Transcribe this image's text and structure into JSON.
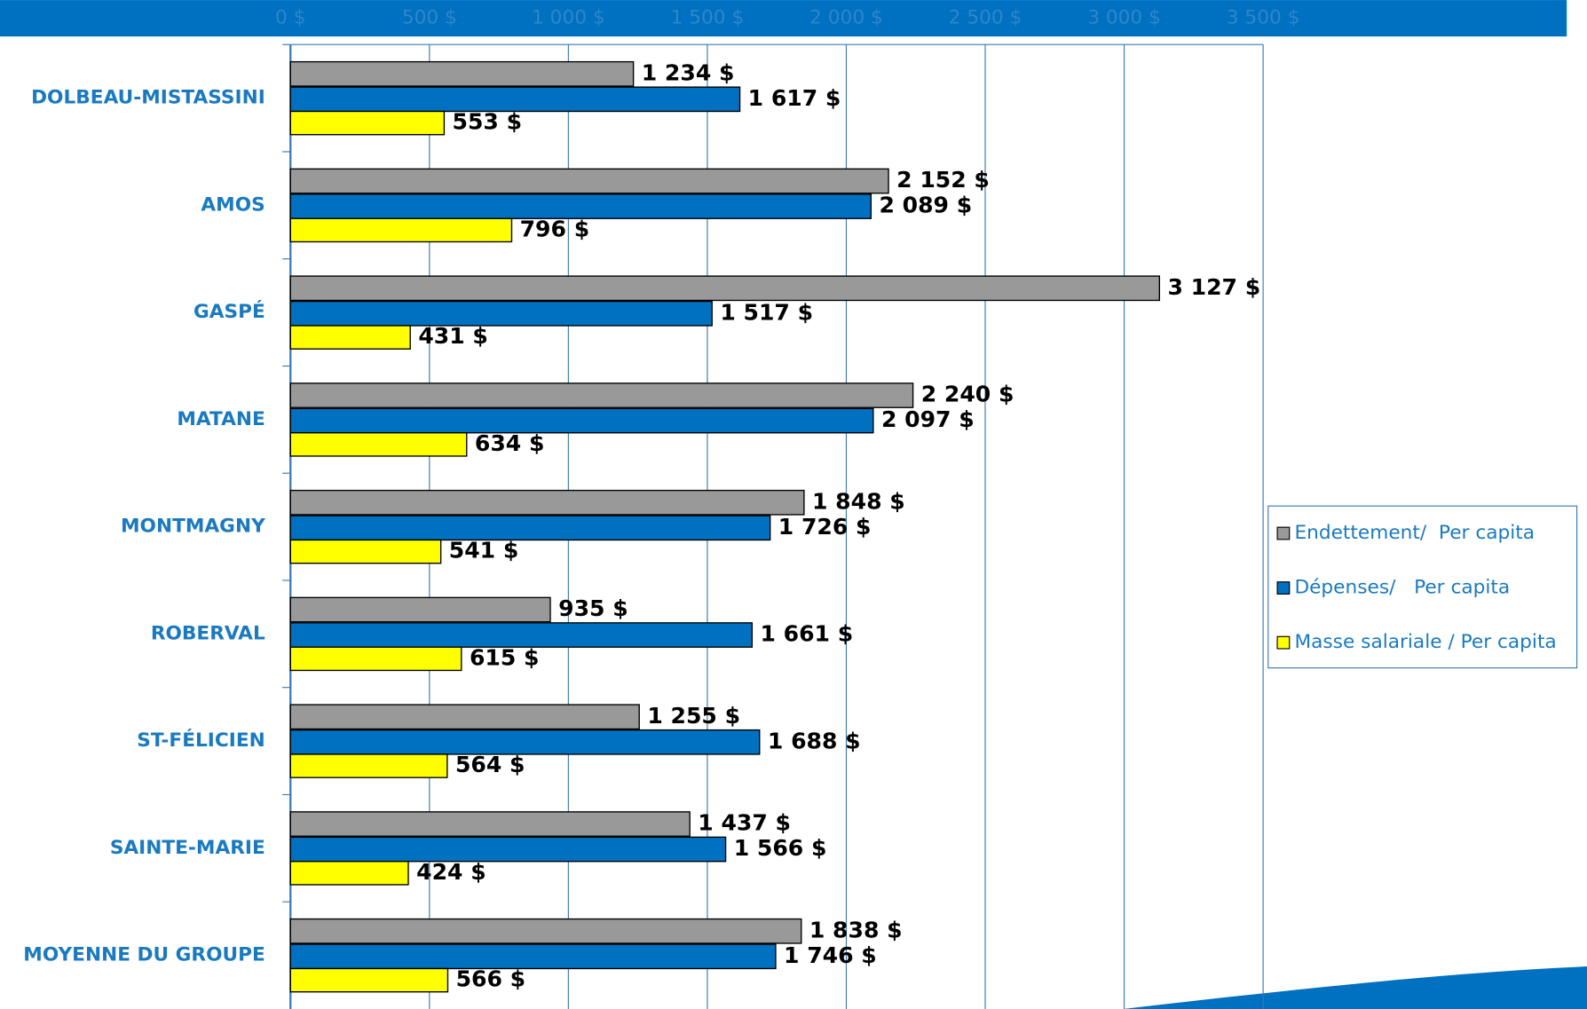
{
  "chart_data": {
    "type": "bar",
    "orientation": "horizontal",
    "categories": [
      "DOLBEAU-MISTASSINI",
      "AMOS",
      "GASPÉ",
      "MATANE",
      "MONTMAGNY",
      "ROBERVAL",
      "ST-FÉLICIEN",
      "SAINTE-MARIE",
      "MOYENNE DU GROUPE"
    ],
    "series": [
      {
        "name": "Endettement/  Per capita",
        "color": "#999999",
        "values": [
          1234,
          2152,
          3127,
          2240,
          1848,
          935,
          1255,
          1437,
          1838
        ],
        "value_labels": [
          "1 234 $",
          "2 152 $",
          "3 127 $",
          "2 240 $",
          "1 848 $",
          "935 $",
          "1 255 $",
          "1 437 $",
          "1 838 $"
        ]
      },
      {
        "name": "Dépenses/   Per capita",
        "color": "#0070c0",
        "values": [
          1617,
          2089,
          1517,
          2097,
          1726,
          1661,
          1688,
          1566,
          1746
        ],
        "value_labels": [
          "1 617 $",
          "2 089 $",
          "1 517 $",
          "2 097 $",
          "1 726 $",
          "1 661 $",
          "1 688 $",
          "1 566 $",
          "1 746 $"
        ]
      },
      {
        "name": "Masse salariale / Per capita",
        "color": "#ffff00",
        "values": [
          553,
          796,
          431,
          634,
          541,
          615,
          564,
          424,
          566
        ],
        "value_labels": [
          "553 $",
          "796 $",
          "431 $",
          "634 $",
          "541 $",
          "615 $",
          "564 $",
          "424 $",
          "566 $"
        ]
      }
    ],
    "xlim": [
      0,
      3500
    ],
    "xticks": [
      {
        "value": 0,
        "label": "0 $"
      },
      {
        "value": 500,
        "label": "500 $"
      },
      {
        "value": 1000,
        "label": "1 000 $"
      },
      {
        "value": 1500,
        "label": "1 500 $"
      },
      {
        "value": 2000,
        "label": "2 000 $"
      },
      {
        "value": 2500,
        "label": "2 500 $"
      },
      {
        "value": 3000,
        "label": "3 000 $"
      },
      {
        "value": 3500,
        "label": "3 500 $"
      }
    ],
    "grid": true,
    "legend": "right"
  }
}
